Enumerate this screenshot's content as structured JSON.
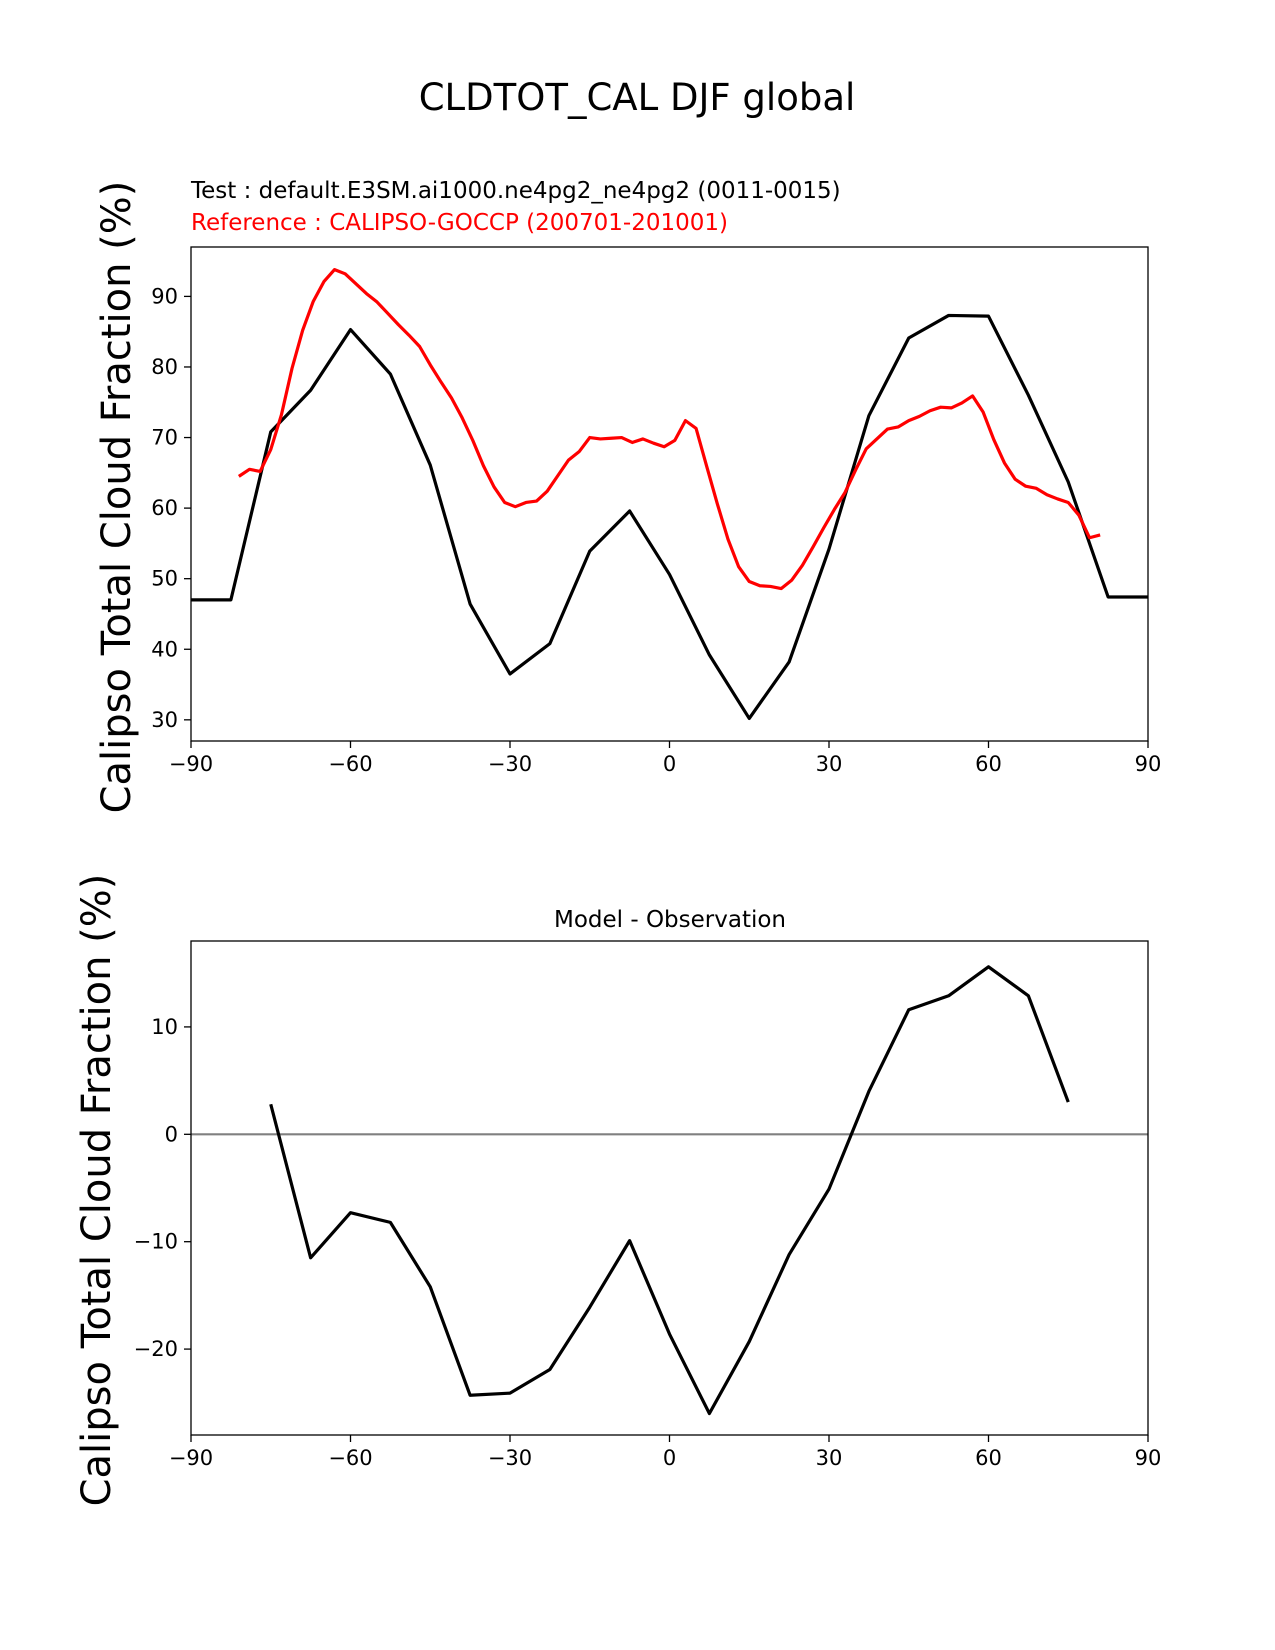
{
  "figure": {
    "title": "CLDTOT_CAL DJF global",
    "test_label": "Test : default.E3SM.ai1000.ne4pg2_ne4pg2 (0011-0015)",
    "ref_label": "Reference : CALIPSO-GOCCP (200701-201001)",
    "diff_title": "Model - Observation",
    "ylabel": "Calipso Total Cloud Fraction (%)"
  },
  "colors": {
    "test": "#000000",
    "reference": "#ff0000",
    "zero_line": "#808080"
  },
  "chart_data": [
    {
      "type": "line",
      "title": "",
      "xlabel": "",
      "ylabel": "Calipso Total Cloud Fraction (%)",
      "xlim": [
        -90,
        90
      ],
      "ylim": [
        27,
        97
      ],
      "xticks": [
        -90,
        -60,
        -30,
        0,
        30,
        60,
        90
      ],
      "yticks": [
        30,
        40,
        50,
        60,
        70,
        80,
        90
      ],
      "grid": false,
      "series": [
        {
          "name": "Test : default.E3SM.ai1000.ne4pg2_ne4pg2 (0011-0015)",
          "color": "#000000",
          "x": [
            -90,
            -82.5,
            -75,
            -67.5,
            -60,
            -52.5,
            -45,
            -37.5,
            -30,
            -22.5,
            -15,
            -7.5,
            0,
            7.5,
            15,
            22.5,
            30,
            37.5,
            45,
            52.5,
            60,
            67.5,
            75,
            82.5,
            90
          ],
          "y": [
            47.0,
            47.0,
            70.8,
            76.7,
            85.3,
            79.0,
            66.1,
            46.4,
            36.5,
            40.8,
            53.9,
            59.6,
            50.6,
            39.2,
            30.2,
            38.2,
            54.2,
            73.1,
            84.1,
            87.3,
            87.2,
            76.0,
            63.7,
            47.4,
            47.4
          ]
        },
        {
          "name": "Reference : CALIPSO-GOCCP (200701-201001)",
          "color": "#ff0000",
          "x": [
            -81,
            -79,
            -77,
            -75,
            -73,
            -71,
            -69,
            -67,
            -65,
            -63,
            -61,
            -59,
            -57,
            -55,
            -53,
            -51,
            -49,
            -47,
            -45,
            -43,
            -41,
            -39,
            -37,
            -35,
            -33,
            -31,
            -29,
            -27,
            -25,
            -23,
            -21,
            -19,
            -17,
            -15,
            -13,
            -11,
            -9,
            -7,
            -5,
            -3,
            -1,
            1,
            3,
            5,
            7,
            9,
            11,
            13,
            15,
            17,
            19,
            21,
            23,
            25,
            27,
            29,
            31,
            33,
            35,
            37,
            39,
            41,
            43,
            45,
            47,
            49,
            51,
            53,
            55,
            57,
            59,
            61,
            63,
            65,
            67,
            69,
            71,
            73,
            75,
            77,
            79,
            81
          ],
          "y": [
            64.5,
            65.5,
            65.2,
            68.3,
            73.2,
            79.8,
            85.2,
            89.3,
            92.1,
            93.8,
            93.2,
            91.8,
            90.4,
            89.2,
            87.6,
            86.0,
            84.5,
            82.9,
            80.3,
            77.9,
            75.6,
            72.8,
            69.6,
            66.0,
            63.0,
            60.8,
            60.2,
            60.8,
            61.0,
            62.4,
            64.6,
            66.8,
            68.0,
            70.0,
            69.8,
            69.9,
            70.0,
            69.3,
            69.8,
            69.2,
            68.7,
            69.6,
            72.4,
            71.3,
            65.9,
            60.6,
            55.6,
            51.7,
            49.6,
            49.0,
            48.9,
            48.6,
            49.8,
            51.9,
            54.5,
            57.2,
            59.8,
            62.2,
            65.4,
            68.4,
            69.8,
            71.2,
            71.5,
            72.4,
            73.0,
            73.8,
            74.3,
            74.2,
            74.9,
            75.9,
            73.6,
            69.7,
            66.4,
            64.1,
            63.1,
            62.8,
            61.9,
            61.3,
            60.8,
            59.0,
            55.8,
            56.2
          ]
        }
      ]
    },
    {
      "type": "line",
      "title": "Model - Observation",
      "xlabel": "",
      "ylabel": "Calipso Total Cloud Fraction (%)",
      "xlim": [
        -90,
        90
      ],
      "ylim": [
        -28,
        18
      ],
      "xticks": [
        -90,
        -60,
        -30,
        0,
        30,
        60,
        90
      ],
      "yticks": [
        -20,
        -10,
        0,
        10
      ],
      "grid": false,
      "zero_line": 0,
      "series": [
        {
          "color": "#000000",
          "x": [
            -75,
            -67.5,
            -60,
            -52.5,
            -45,
            -37.5,
            -30,
            -22.5,
            -15,
            -7.5,
            0,
            7.5,
            15,
            22.5,
            30,
            37.5,
            45,
            52.5,
            60,
            67.5,
            75
          ],
          "y": [
            2.8,
            -11.5,
            -7.3,
            -8.2,
            -14.2,
            -24.3,
            -24.1,
            -21.9,
            -16.1,
            -9.9,
            -18.6,
            -26.0,
            -19.3,
            -11.2,
            -5.1,
            4.0,
            11.6,
            12.9,
            15.6,
            12.9,
            3.0
          ]
        }
      ]
    }
  ]
}
